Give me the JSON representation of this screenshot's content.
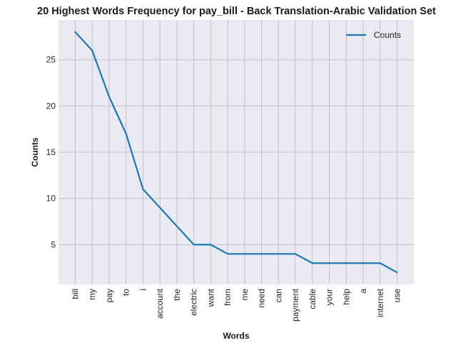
{
  "chart_data": {
    "type": "line",
    "title": "20 Highest Words Frequency for pay_bill - Back Translation-Arabic Validation Set",
    "xlabel": "Words",
    "ylabel": "Counts",
    "categories": [
      "bill",
      "my",
      "pay",
      "to",
      "i",
      "account",
      "the",
      "electric",
      "want",
      "from",
      "me",
      "need",
      "can",
      "payment",
      "cable",
      "your",
      "help",
      "a",
      "internet",
      "use"
    ],
    "series": [
      {
        "name": "Counts",
        "values": [
          28,
          26,
          21,
          17,
          11,
          9,
          7,
          5,
          5,
          4,
          4,
          4,
          4,
          4,
          3,
          3,
          3,
          3,
          3,
          2
        ],
        "color": "#1f77b4"
      }
    ],
    "ylim": [
      0.7,
      29.3
    ],
    "yticks": [
      5,
      10,
      15,
      20,
      25
    ],
    "grid": true,
    "legend_position": "top-right",
    "background": "#eaeaf2",
    "grid_color": "#c0c0c8"
  }
}
